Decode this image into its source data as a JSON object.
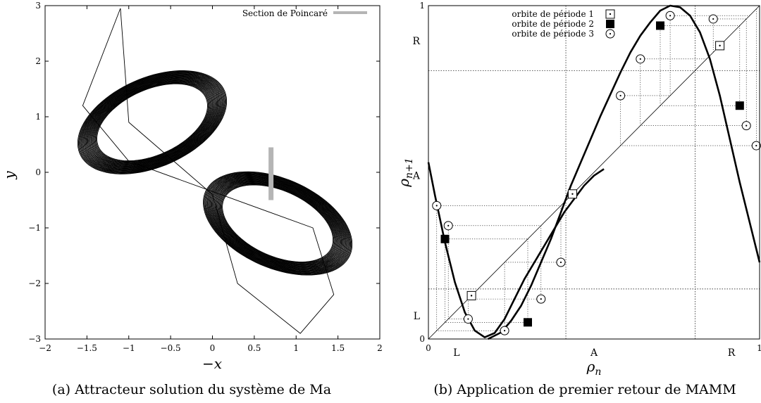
{
  "captions": {
    "a": "(a) Attracteur solution du système de Ma",
    "b": "(b) Application de premier retour de MAMM"
  },
  "chart_data": [
    {
      "id": "a",
      "type": "line",
      "title": "",
      "xlabel": "−x",
      "ylabel": "y",
      "xlim": [
        -2,
        2
      ],
      "ylim": [
        -3,
        3
      ],
      "x_ticks": [
        -2,
        -1.5,
        -1,
        -0.5,
        0,
        0.5,
        1,
        1.5,
        2
      ],
      "y_ticks": [
        -3,
        -2,
        -1,
        0,
        1,
        2,
        3
      ],
      "x_tick_labels": [
        "−2",
        "−1.5",
        "−1",
        "−0.5",
        "0",
        "0.5",
        "1",
        "1.5",
        "2"
      ],
      "y_tick_labels": [
        "−3",
        "−2",
        "−1",
        "0",
        "1",
        "2",
        "3"
      ],
      "legend": {
        "position": "top-right",
        "entry": "Section de Poincaré",
        "color": "#b5b5b5"
      },
      "poincare_section": {
        "x": 0.7,
        "y": [
          -0.5,
          0.45
        ]
      },
      "attractor": {
        "center_left": [
          -0.72,
          0.9
        ],
        "center_right": [
          0.78,
          -0.92
        ],
        "extent_max": [
          1.48,
          2.95
        ],
        "color": "#000000"
      },
      "grid": false
    },
    {
      "id": "b",
      "type": "scatter",
      "title": "",
      "xlabel": "ρ",
      "xlabel_sub": "n",
      "ylabel": "ρ",
      "ylabel_sub": "n+1",
      "xlim": [
        0,
        1
      ],
      "ylim": [
        0,
        1
      ],
      "x_ticks": [
        0,
        1
      ],
      "y_ticks": [
        0,
        1
      ],
      "x_tick_labels": [
        "0",
        "1"
      ],
      "y_tick_labels": [
        "0",
        "1"
      ],
      "region_labels_x": [
        {
          "label": "L",
          "at": 0.085
        },
        {
          "label": "A",
          "at": 0.5
        },
        {
          "label": "R",
          "at": 0.915
        }
      ],
      "region_labels_y": [
        {
          "label": "L",
          "at": 0.07
        },
        {
          "label": "A",
          "at": 0.49
        },
        {
          "label": "R",
          "at": 0.895
        }
      ],
      "partition_lines": {
        "x": [
          0.415,
          0.805
        ],
        "y": [
          0.15,
          0.805
        ]
      },
      "diagonal": true,
      "map_branches": [
        {
          "x": [
            0.0,
            0.02,
            0.05,
            0.08,
            0.11,
            0.14,
            0.17,
            0.2,
            0.23,
            0.26,
            0.29,
            0.32,
            0.35,
            0.38,
            0.41,
            0.44,
            0.47,
            0.5,
            0.53
          ],
          "y": [
            0.53,
            0.43,
            0.29,
            0.17,
            0.08,
            0.025,
            0.005,
            0.018,
            0.06,
            0.12,
            0.18,
            0.23,
            0.28,
            0.33,
            0.38,
            0.42,
            0.46,
            0.49,
            0.51
          ]
        },
        {
          "x": [
            0.18,
            0.22,
            0.25,
            0.28,
            0.31,
            0.34,
            0.37,
            0.4,
            0.43,
            0.46,
            0.49,
            0.52,
            0.55,
            0.58,
            0.61,
            0.64,
            0.67,
            0.7,
            0.73,
            0.76,
            0.79,
            0.82,
            0.85,
            0.88,
            0.91,
            0.94,
            0.97,
            1.0
          ],
          "y": [
            0.0,
            0.02,
            0.055,
            0.1,
            0.16,
            0.23,
            0.3,
            0.38,
            0.46,
            0.53,
            0.6,
            0.67,
            0.735,
            0.8,
            0.86,
            0.91,
            0.95,
            0.985,
            1.0,
            0.995,
            0.97,
            0.92,
            0.84,
            0.73,
            0.6,
            0.47,
            0.35,
            0.23
          ]
        }
      ],
      "series": [
        {
          "name": "orbite de période 1",
          "marker": "square-dot",
          "x": [
            0.13,
            0.435,
            0.88
          ],
          "y": [
            0.13,
            0.435,
            0.88
          ]
        },
        {
          "name": "orbite de période 2",
          "marker": "filled-square",
          "x": [
            0.05,
            0.3,
            0.7,
            0.94
          ],
          "y": [
            0.3,
            0.05,
            0.94,
            0.7
          ]
        },
        {
          "name": "orbite de période 3",
          "marker": "circle-dot",
          "x": [
            0.025,
            0.06,
            0.12,
            0.23,
            0.34,
            0.4,
            0.58,
            0.64,
            0.73,
            0.86,
            0.96,
            0.99
          ],
          "y": [
            0.4,
            0.34,
            0.06,
            0.025,
            0.12,
            0.23,
            0.73,
            0.84,
            0.97,
            0.96,
            0.64,
            0.58
          ]
        }
      ],
      "legend": {
        "position": "top-left"
      },
      "grid": false
    }
  ]
}
